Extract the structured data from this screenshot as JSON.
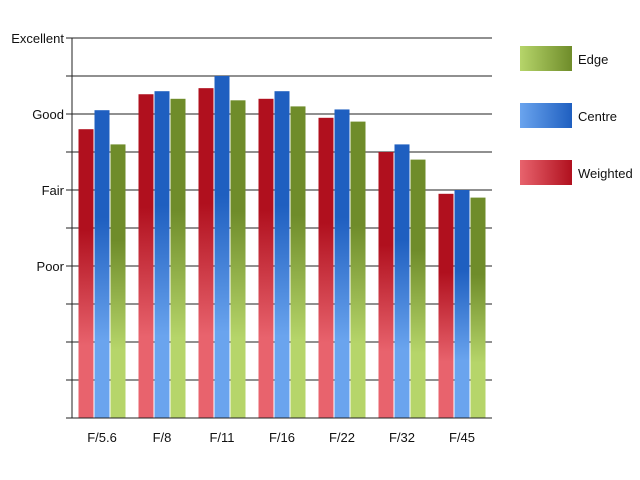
{
  "chart_data": {
    "type": "bar",
    "categories": [
      "F/5.6",
      "F/8",
      "F/11",
      "F/16",
      "F/22",
      "F/32",
      "F/45"
    ],
    "series": [
      {
        "name": "Weighted",
        "values": [
          2.8,
          3.26,
          3.34,
          3.2,
          2.95,
          2.5,
          1.95
        ]
      },
      {
        "name": "Centre",
        "values": [
          3.05,
          3.3,
          3.5,
          3.3,
          3.06,
          2.6,
          2.0
        ]
      },
      {
        "name": "Edge",
        "values": [
          2.6,
          3.2,
          3.18,
          3.1,
          2.9,
          2.4,
          1.9
        ]
      }
    ],
    "y_ticks": [
      {
        "value": 1,
        "label": "Poor"
      },
      {
        "value": 2,
        "label": "Fair"
      },
      {
        "value": 3,
        "label": "Good"
      },
      {
        "value": 4,
        "label": "Excellent"
      }
    ],
    "ylim": [
      -1,
      4
    ],
    "grid": true,
    "legend_position": "right",
    "legend_order": [
      "Edge",
      "Centre",
      "Weighted"
    ],
    "colors": {
      "Weighted": {
        "dark": "#b0101e",
        "light": "#e8636d"
      },
      "Centre": {
        "dark": "#1f5fc0",
        "light": "#6aa4ee"
      },
      "Edge": {
        "dark": "#6f8c2a",
        "light": "#b6d56a"
      }
    }
  }
}
